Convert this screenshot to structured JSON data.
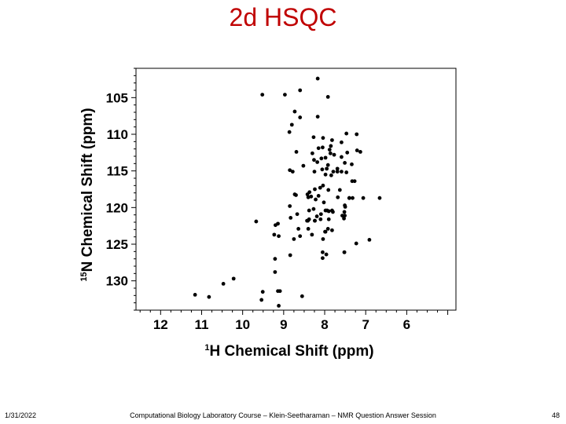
{
  "slide": {
    "title": "2d HSQC",
    "footer_date": "1/31/2022",
    "footer_text": "Computational Biology Laboratory Course – Klein-Seetharaman – NMR Question Answer Session",
    "page_number": "48"
  },
  "chart_data": {
    "type": "scatter",
    "title": "",
    "xlabel_sup": "1",
    "xlabel": "H Chemical Shift (ppm)",
    "ylabel_sup": "15",
    "ylabel": "N Chemical Shift (ppm)",
    "xlim": [
      12.6,
      4.8
    ],
    "ylim": [
      101,
      134
    ],
    "x_reversed": true,
    "y_reversed": true,
    "x_ticks": [
      12,
      11,
      10,
      9,
      8,
      7,
      6
    ],
    "y_ticks": [
      105,
      110,
      115,
      120,
      125,
      130
    ],
    "grid": false,
    "marker_color": "#000000",
    "points": [
      [
        8.17,
        102.4
      ],
      [
        8.6,
        104.0
      ],
      [
        8.97,
        104.6
      ],
      [
        9.52,
        104.6
      ],
      [
        7.92,
        104.9
      ],
      [
        8.73,
        106.9
      ],
      [
        8.17,
        107.6
      ],
      [
        8.6,
        107.7
      ],
      [
        8.8,
        108.7
      ],
      [
        8.86,
        109.7
      ],
      [
        7.47,
        109.9
      ],
      [
        7.22,
        110.0
      ],
      [
        8.27,
        110.4
      ],
      [
        8.04,
        110.5
      ],
      [
        7.82,
        110.8
      ],
      [
        7.59,
        111.1
      ],
      [
        7.85,
        111.6
      ],
      [
        8.05,
        111.8
      ],
      [
        8.15,
        111.9
      ],
      [
        7.88,
        112.1
      ],
      [
        7.21,
        112.2
      ],
      [
        8.69,
        112.4
      ],
      [
        7.13,
        112.4
      ],
      [
        7.45,
        112.5
      ],
      [
        7.86,
        112.6
      ],
      [
        8.3,
        112.6
      ],
      [
        7.77,
        112.8
      ],
      [
        7.59,
        113.1
      ],
      [
        7.98,
        113.2
      ],
      [
        8.08,
        113.3
      ],
      [
        8.26,
        113.5
      ],
      [
        8.18,
        113.8
      ],
      [
        7.51,
        113.9
      ],
      [
        7.34,
        114.1
      ],
      [
        7.92,
        114.2
      ],
      [
        8.52,
        114.3
      ],
      [
        7.95,
        114.7
      ],
      [
        7.69,
        114.7
      ],
      [
        8.06,
        114.8
      ],
      [
        8.85,
        114.9
      ],
      [
        8.78,
        115.1
      ],
      [
        7.59,
        115.1
      ],
      [
        7.69,
        115.1
      ],
      [
        7.79,
        115.1
      ],
      [
        8.25,
        115.1
      ],
      [
        7.47,
        115.2
      ],
      [
        7.98,
        115.5
      ],
      [
        7.84,
        115.6
      ],
      [
        7.27,
        116.4
      ],
      [
        7.33,
        116.4
      ],
      [
        8.04,
        117.0
      ],
      [
        8.11,
        117.3
      ],
      [
        8.24,
        117.5
      ],
      [
        7.63,
        117.6
      ],
      [
        7.91,
        117.6
      ],
      [
        8.37,
        117.9
      ],
      [
        8.73,
        118.2
      ],
      [
        8.42,
        118.2
      ],
      [
        8.7,
        118.3
      ],
      [
        8.15,
        118.4
      ],
      [
        8.33,
        118.5
      ],
      [
        8.4,
        118.6
      ],
      [
        7.68,
        118.6
      ],
      [
        7.4,
        118.7
      ],
      [
        7.4,
        118.7
      ],
      [
        7.06,
        118.7
      ],
      [
        7.32,
        118.7
      ],
      [
        6.66,
        118.7
      ],
      [
        8.22,
        118.9
      ],
      [
        8.02,
        119.3
      ],
      [
        7.51,
        119.7
      ],
      [
        8.85,
        119.8
      ],
      [
        7.5,
        119.9
      ],
      [
        8.27,
        120.2
      ],
      [
        7.94,
        120.4
      ],
      [
        8.38,
        120.4
      ],
      [
        7.98,
        120.4
      ],
      [
        7.82,
        120.4
      ],
      [
        7.9,
        120.5
      ],
      [
        7.52,
        120.6
      ],
      [
        7.8,
        120.6
      ],
      [
        8.67,
        120.9
      ],
      [
        8.09,
        120.9
      ],
      [
        7.51,
        121.1
      ],
      [
        7.57,
        121.1
      ],
      [
        8.19,
        121.2
      ],
      [
        8.83,
        121.4
      ],
      [
        7.53,
        121.5
      ],
      [
        8.1,
        121.6
      ],
      [
        8.38,
        121.6
      ],
      [
        7.9,
        121.6
      ],
      [
        8.41,
        121.8
      ],
      [
        8.24,
        121.8
      ],
      [
        8.24,
        121.8
      ],
      [
        8.43,
        121.8
      ],
      [
        9.67,
        121.9
      ],
      [
        9.14,
        122.2
      ],
      [
        9.2,
        122.4
      ],
      [
        7.92,
        122.9
      ],
      [
        8.64,
        122.9
      ],
      [
        8.4,
        122.9
      ],
      [
        7.82,
        123.1
      ],
      [
        7.99,
        123.3
      ],
      [
        7.98,
        123.3
      ],
      [
        9.23,
        123.7
      ],
      [
        8.31,
        123.7
      ],
      [
        8.6,
        123.9
      ],
      [
        9.12,
        123.9
      ],
      [
        8.75,
        124.3
      ],
      [
        8.04,
        124.3
      ],
      [
        6.91,
        124.4
      ],
      [
        7.23,
        124.9
      ],
      [
        7.52,
        126.1
      ],
      [
        8.05,
        126.1
      ],
      [
        7.52,
        126.1
      ],
      [
        7.96,
        126.4
      ],
      [
        8.84,
        126.5
      ],
      [
        8.05,
        126.9
      ],
      [
        9.21,
        127.0
      ],
      [
        9.21,
        128.8
      ],
      [
        10.22,
        129.7
      ],
      [
        10.47,
        130.4
      ],
      [
        9.51,
        131.5
      ],
      [
        11.16,
        131.9
      ],
      [
        10.82,
        132.2
      ],
      [
        9.09,
        131.4
      ],
      [
        9.14,
        131.4
      ],
      [
        9.12,
        133.4
      ],
      [
        8.55,
        132.1
      ],
      [
        9.54,
        132.6
      ]
    ]
  }
}
